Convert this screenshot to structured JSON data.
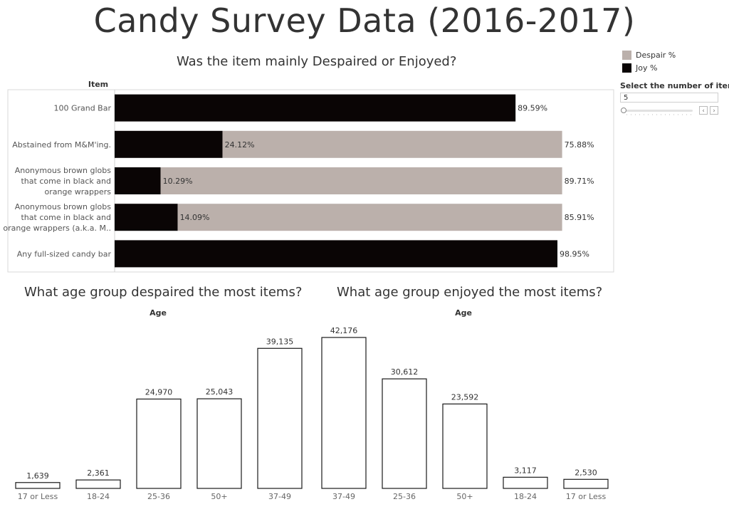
{
  "title": "Candy Survey Data (2016-2017)",
  "colors": {
    "despair": "#bbb0ab",
    "joy": "#0a0505",
    "bar_outline": "#1a1a1a"
  },
  "legend": {
    "items": [
      {
        "label": "Despair %",
        "color": "#bbb0ab"
      },
      {
        "label": "Joy %",
        "color": "#0a0505"
      }
    ]
  },
  "parameter": {
    "label": "Select the number of items",
    "value": "5",
    "slider_fraction": 0.0,
    "prev_icon": "chevron-left-icon",
    "next_icon": "chevron-right-icon"
  },
  "chart_data": [
    {
      "type": "bar",
      "orientation": "horizontal",
      "stacked": true,
      "title": "Was the item mainly Despaired or Enjoyed?",
      "row_header": "Item",
      "categories": [
        [
          "100 Grand Bar"
        ],
        [
          "Abstained from M&M'ing."
        ],
        [
          "Anonymous brown globs",
          "that come in black and",
          "orange wrappers"
        ],
        [
          "Anonymous brown globs",
          "that come in black and",
          "orange wrappers (a.k.a. M.."
        ],
        [
          "Any full-sized candy bar"
        ]
      ],
      "series": [
        {
          "name": "Joy %",
          "values": [
            89.59,
            24.12,
            10.29,
            14.09,
            98.95
          ],
          "labels": [
            "89.59%",
            "24.12%",
            "10.29%",
            "14.09%",
            "98.95%"
          ]
        },
        {
          "name": "Despair %",
          "values": [
            null,
            75.88,
            89.71,
            85.91,
            null
          ],
          "labels": [
            "",
            "75.88%",
            "89.71%",
            "85.91%",
            ""
          ]
        }
      ],
      "xlim": [
        0,
        110
      ]
    },
    {
      "type": "bar",
      "title": "What age group despaired the most items?",
      "xlabel": "Age",
      "categories": [
        "17 or Less",
        "18-24",
        "25-36",
        "50+",
        "37-49"
      ],
      "values": [
        1639,
        2361,
        24970,
        25043,
        39135
      ],
      "labels": [
        "1,639",
        "2,361",
        "24,970",
        "25,043",
        "39,135"
      ],
      "ylim": [
        0,
        42176
      ]
    },
    {
      "type": "bar",
      "title": "What age group enjoyed the most items?",
      "xlabel": "Age",
      "categories": [
        "37-49",
        "25-36",
        "50+",
        "18-24",
        "17 or Less"
      ],
      "values": [
        42176,
        30612,
        23592,
        3117,
        2530
      ],
      "labels": [
        "42,176",
        "30,612",
        "23,592",
        "3,117",
        "2,530"
      ],
      "ylim": [
        0,
        42176
      ]
    }
  ]
}
